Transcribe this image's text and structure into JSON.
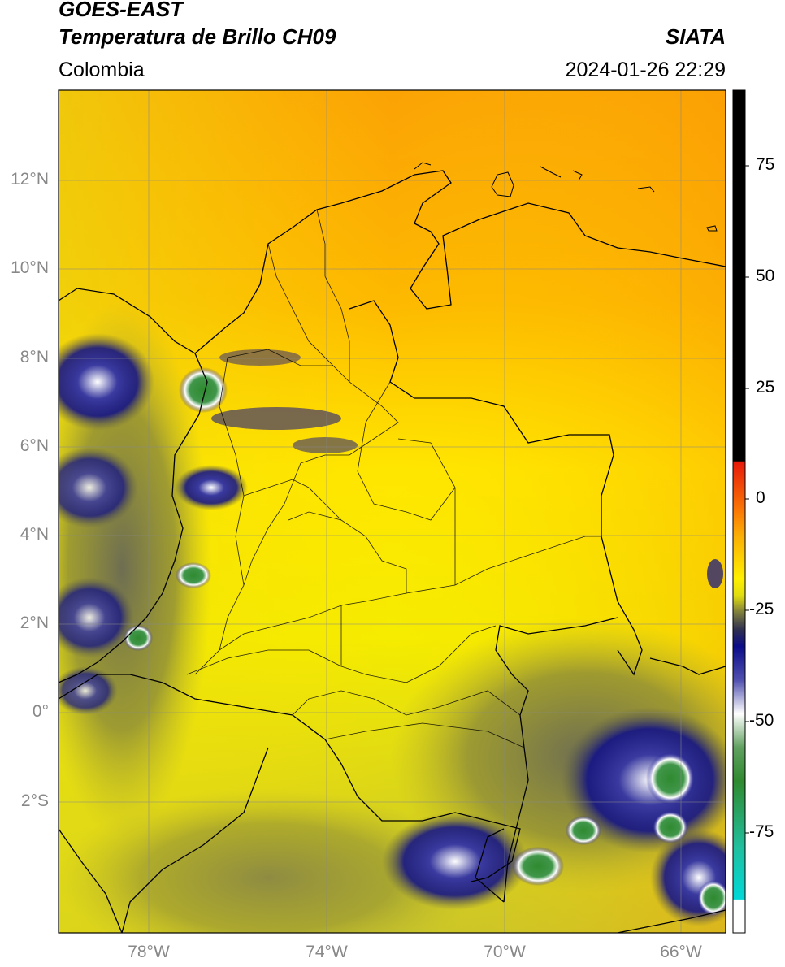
{
  "header": {
    "satellite": "GOES-EAST",
    "product": "Temperatura de Brillo CH09",
    "source": "SIATA",
    "region": "Colombia",
    "timestamp": "2024-01-26 22:29"
  },
  "map": {
    "lat_labels": [
      "12°N",
      "10°N",
      "8°N",
      "6°N",
      "4°N",
      "2°N",
      "0°",
      "2°S"
    ],
    "lon_labels": [
      "78°W",
      "74°W",
      "70°W",
      "66°W"
    ],
    "extent": {
      "lon_min": -80,
      "lon_max": -65,
      "lat_min": -5,
      "lat_max": 14
    }
  },
  "colorbar": {
    "ticks": [
      "75",
      "50",
      "25",
      "0",
      "-25",
      "-50",
      "-75"
    ],
    "tick_values": [
      75,
      50,
      25,
      0,
      -25,
      -50,
      -75
    ],
    "range": [
      -100,
      90
    ],
    "colors": {
      "black": "#000000",
      "red": "#e8190a",
      "orange": "#fb9e05",
      "yellow": "#fff000",
      "olive": "#7c7c3e",
      "navy": "#0b0b8a",
      "white": "#ffffff",
      "green": "#2f8a2f",
      "cyan": "#00d8d8"
    }
  }
}
